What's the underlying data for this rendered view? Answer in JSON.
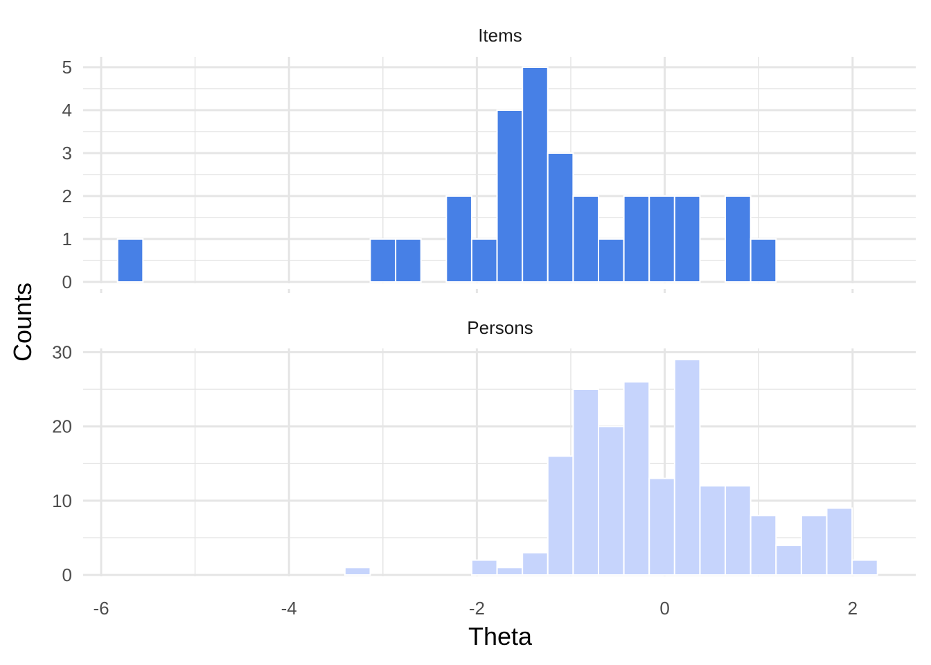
{
  "chart_data": {
    "type": "bar",
    "xlabel": "Theta",
    "ylabel": "Counts",
    "bin_width": 0.27,
    "xlim": [
      -6,
      2.4
    ],
    "x_ticks": [
      -6,
      -4,
      -2,
      0,
      2
    ],
    "x_tick_labels": [
      "-6",
      "-4",
      "-2",
      "0",
      "2"
    ],
    "grid": true,
    "colors": {
      "items": "#4780e6",
      "persons": "#c6d4fc",
      "grid": "#e5e5e5",
      "bar_edge": "#ffffff"
    },
    "panels": [
      {
        "title": "Items",
        "ylim": [
          0,
          5.2
        ],
        "y_ticks": [
          0,
          1,
          2,
          3,
          4,
          5
        ],
        "y_tick_labels": [
          "0",
          "1",
          "2",
          "3",
          "4",
          "5"
        ],
        "bin_centers": [
          -5.69,
          -3.0,
          -2.73,
          -2.19,
          -1.92,
          -1.65,
          -1.38,
          -1.11,
          -0.84,
          -0.57,
          -0.3,
          -0.03,
          0.24,
          0.78,
          1.05
        ],
        "values": [
          1,
          1,
          1,
          2,
          1,
          4,
          5,
          3,
          2,
          1,
          2,
          2,
          2,
          2,
          1
        ]
      },
      {
        "title": "Persons",
        "ylim": [
          0,
          31
        ],
        "y_ticks": [
          0,
          10,
          20,
          30
        ],
        "y_tick_labels": [
          "0",
          "10",
          "20",
          "30"
        ],
        "bin_centers": [
          -3.27,
          -1.92,
          -1.65,
          -1.38,
          -1.11,
          -0.84,
          -0.57,
          -0.3,
          -0.03,
          0.24,
          0.51,
          0.78,
          1.05,
          1.32,
          1.59,
          1.86,
          2.13
        ],
        "values": [
          1,
          2,
          1,
          3,
          16,
          25,
          20,
          26,
          13,
          29,
          12,
          12,
          8,
          4,
          8,
          9,
          2
        ]
      }
    ]
  }
}
